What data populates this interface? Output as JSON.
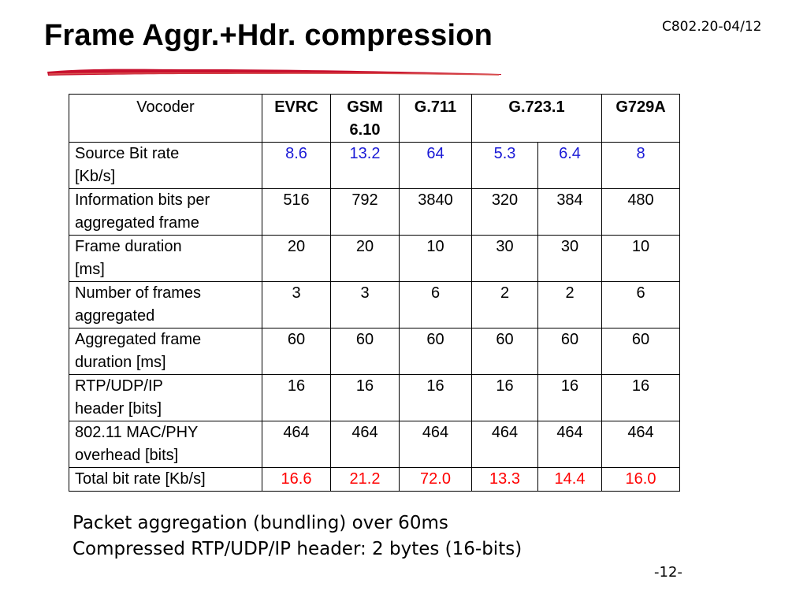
{
  "slide": {
    "title": "Frame Aggr.+Hdr. compression",
    "doc_id": "C802.20-04/12",
    "page_number": "-12-"
  },
  "colors": {
    "underline": "#c8102e",
    "source_rate_values": "#1a1ad6",
    "total_rate_values": "#ff0000"
  },
  "table": {
    "header": {
      "label": "Vocoder",
      "evrc": "EVRC",
      "gsm_line1": "GSM",
      "gsm_line2": "6.10",
      "g711": "G.711",
      "g7231": "G.723.1",
      "g729a": "G729A"
    },
    "rows": [
      {
        "label_line1": "Source Bit rate",
        "label_line2": "[Kb/s]",
        "values": [
          "8.6",
          "13.2",
          "64",
          "5.3",
          "6.4",
          "8"
        ]
      },
      {
        "label_line1": "Information bits per",
        "label_line2": "aggregated frame",
        "values": [
          "516",
          "792",
          "3840",
          "320",
          "384",
          "480"
        ]
      },
      {
        "label_line1": "Frame duration",
        "label_line2": "[ms]",
        "values": [
          "20",
          "20",
          "10",
          "30",
          "30",
          "10"
        ]
      },
      {
        "label_line1": "Number of frames",
        "label_line2": "aggregated",
        "values": [
          "3",
          "3",
          "6",
          "2",
          "2",
          "6"
        ]
      },
      {
        "label_line1": "Aggregated frame",
        "label_line2": "duration [ms]",
        "values": [
          "60",
          "60",
          "60",
          "60",
          "60",
          "60"
        ]
      },
      {
        "label_line1": "RTP/UDP/IP",
        "label_line2": "header [bits]",
        "values": [
          "16",
          "16",
          "16",
          "16",
          "16",
          "16"
        ]
      },
      {
        "label_line1": "802.11 MAC/PHY",
        "label_line2": "overhead [bits]",
        "values": [
          "464",
          "464",
          "464",
          "464",
          "464",
          "464"
        ]
      },
      {
        "label_line1": "Total bit rate [Kb/s]",
        "values": [
          "16.6",
          "21.2",
          "72.0",
          "13.3",
          "14.4",
          "16.0"
        ]
      }
    ]
  },
  "notes": {
    "line1": "Packet aggregation (bundling) over 60ms",
    "line2": "Compressed RTP/UDP/IP header: 2 bytes (16-bits)"
  }
}
